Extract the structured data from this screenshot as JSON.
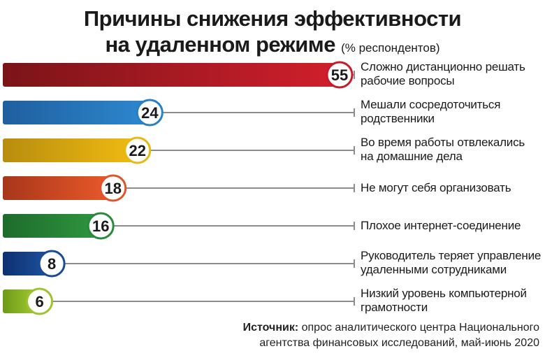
{
  "title": {
    "line1": "Причины снижения эффективности",
    "line2": "на удаленном режиме",
    "suffix": "(% респондентов)"
  },
  "chart_data": {
    "type": "bar",
    "orientation": "horizontal",
    "categories": [
      "Сложно дистанционно решать рабочие вопросы",
      "Мешали сосредоточиться родственники",
      "Во время работы отвлекались на домашние дела",
      "Не могут себя организовать",
      "Плохое интернет-соединение",
      "Руководитель теряет управление удаленными сотрудниками",
      "Низкий уровень компьютерной грамотности"
    ],
    "values": [
      55,
      24,
      22,
      18,
      16,
      8,
      6
    ],
    "value_labels": [
      "55",
      "24",
      "22",
      "18",
      "16",
      "8",
      "6"
    ],
    "label_lines": [
      [
        "Сложно дистанционно решать",
        "рабочие вопросы"
      ],
      [
        "Мешали сосредоточиться",
        "родственники"
      ],
      [
        "Во время работы отвлекались",
        "на домашние дела"
      ],
      [
        "Не могут себя организовать"
      ],
      [
        "Плохое интернет-соединение"
      ],
      [
        "Руководитель теряет управление",
        "удаленными сотрудниками"
      ],
      [
        "Низкий уровень компьютерной",
        "грамотности"
      ]
    ],
    "xlim": [
      0,
      55
    ],
    "bar_colors": [
      [
        "#7a1418",
        "#d11f2c"
      ],
      [
        "#1f5f9e",
        "#2d88cf"
      ],
      [
        "#b88c0e",
        "#f0bc12"
      ],
      [
        "#a8361a",
        "#ea5a2a"
      ],
      [
        "#1e6b2b",
        "#2e9640"
      ],
      [
        "#0f3070",
        "#1d53a0"
      ],
      [
        "#6d9a18",
        "#a7cd34"
      ]
    ],
    "ring_colors": [
      "#c71b2a",
      "#2a7fc5",
      "#eab812",
      "#e2532a",
      "#2a8a3c",
      "#1a4b96",
      "#9cc42e"
    ],
    "grid": false,
    "legend": "none"
  },
  "source": {
    "label": "Источник:",
    "line1": "опрос аналитического центра Национального",
    "line2": "агентства финансовых исследований, май-июнь 2020"
  }
}
